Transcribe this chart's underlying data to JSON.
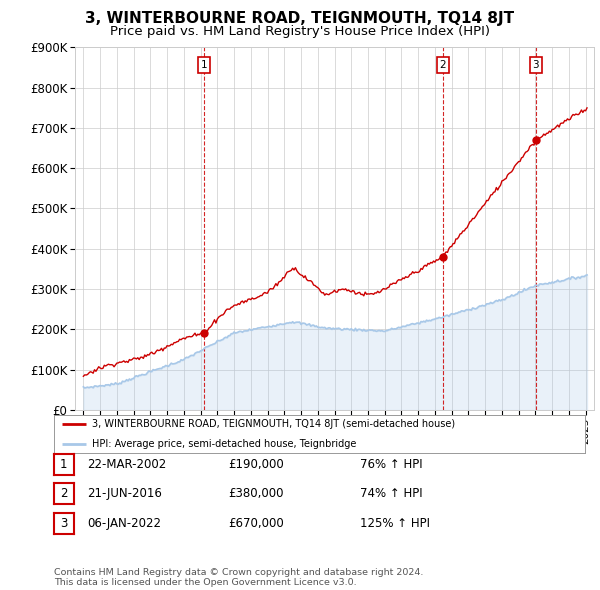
{
  "title": "3, WINTERBOURNE ROAD, TEIGNMOUTH, TQ14 8JT",
  "subtitle": "Price paid vs. HM Land Registry's House Price Index (HPI)",
  "ylim": [
    0,
    900000
  ],
  "yticks": [
    0,
    100000,
    200000,
    300000,
    400000,
    500000,
    600000,
    700000,
    800000,
    900000
  ],
  "ytick_labels": [
    "£0",
    "£100K",
    "£200K",
    "£300K",
    "£400K",
    "£500K",
    "£600K",
    "£700K",
    "£800K",
    "£900K"
  ],
  "hpi_color": "#a8c8e8",
  "price_color": "#cc0000",
  "vline_color": "#cc0000",
  "background_color": "#ffffff",
  "grid_color": "#cccccc",
  "sale_points": [
    {
      "year": 2002.22,
      "price": 190000,
      "label": "1"
    },
    {
      "year": 2016.47,
      "price": 380000,
      "label": "2"
    },
    {
      "year": 2022.02,
      "price": 670000,
      "label": "3"
    }
  ],
  "legend_entries": [
    "3, WINTERBOURNE ROAD, TEIGNMOUTH, TQ14 8JT (semi-detached house)",
    "HPI: Average price, semi-detached house, Teignbridge"
  ],
  "table_data": [
    [
      "1",
      "22-MAR-2002",
      "£190,000",
      "76% ↑ HPI"
    ],
    [
      "2",
      "21-JUN-2016",
      "£380,000",
      "74% ↑ HPI"
    ],
    [
      "3",
      "06-JAN-2022",
      "£670,000",
      "125% ↑ HPI"
    ]
  ],
  "footer": "Contains HM Land Registry data © Crown copyright and database right 2024.\nThis data is licensed under the Open Government Licence v3.0.",
  "title_fontsize": 11,
  "subtitle_fontsize": 9.5,
  "tick_fontsize": 8.5,
  "xlim_start": 1994.5,
  "xlim_end": 2025.5,
  "xtick_years": [
    1995,
    1996,
    1997,
    1998,
    1999,
    2000,
    2001,
    2002,
    2003,
    2004,
    2005,
    2006,
    2007,
    2008,
    2009,
    2010,
    2011,
    2012,
    2013,
    2014,
    2015,
    2016,
    2017,
    2018,
    2019,
    2020,
    2021,
    2022,
    2023,
    2024,
    2025
  ]
}
